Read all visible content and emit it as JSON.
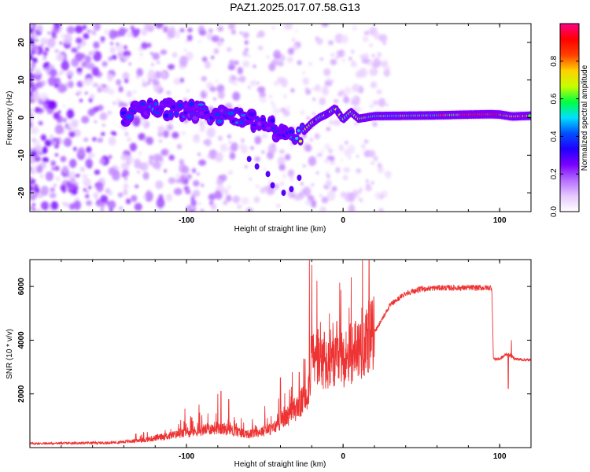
{
  "chart_data": [
    {
      "type": "heatmap",
      "title": "PAZ1.2025.017.07.58.G13",
      "xlabel": "Height of straight line (km)",
      "ylabel": "Frequency (Hz)",
      "xlim": [
        -200,
        120
      ],
      "ylim": [
        -25,
        25
      ],
      "x_ticks": [
        -100,
        0,
        100
      ],
      "y_ticks": [
        -20,
        -10,
        0,
        10,
        20
      ],
      "colorbar": {
        "label": "Normalized spectral amplitude",
        "range": [
          0,
          1
        ],
        "ticks": [
          "0.0",
          "0.2",
          "0.4",
          "0.6",
          "0.8"
        ],
        "tick_values": [
          0,
          0.2,
          0.4,
          0.6,
          0.8
        ],
        "colormap": [
          "#ffffff",
          "#e6c8ff",
          "#b46eff",
          "#7a00ff",
          "#2000ff",
          "#0050ff",
          "#00e0ff",
          "#00ff40",
          "#c8ff00",
          "#ffd000",
          "#ff4000",
          "#ff0000",
          "#ff0088"
        ]
      },
      "ridge": {
        "points": [
          [
            -135,
            3.2
          ],
          [
            -120,
            2.6
          ],
          [
            -110,
            2.2
          ],
          [
            -100,
            2.0
          ],
          [
            -90,
            1.6
          ],
          [
            -80,
            0.8
          ],
          [
            -70,
            0.6
          ],
          [
            -60,
            -0.4
          ],
          [
            -50,
            -1.5
          ],
          [
            -42,
            -3.5
          ],
          [
            -35,
            -5.0
          ],
          [
            -30,
            -6.2
          ],
          [
            -26,
            -4.0
          ],
          [
            -20,
            -1.5
          ],
          [
            -15,
            0.0
          ],
          [
            -10,
            1.0
          ],
          [
            -5,
            2.5
          ],
          [
            0,
            -0.5
          ],
          [
            5,
            1.5
          ],
          [
            10,
            -0.3
          ],
          [
            20,
            0.4
          ],
          [
            40,
            0.5
          ],
          [
            60,
            0.6
          ],
          [
            80,
            0.8
          ],
          [
            95,
            0.9
          ],
          [
            100,
            0.8
          ],
          [
            108,
            0.3
          ],
          [
            120,
            0.5
          ]
        ]
      }
    },
    {
      "type": "line",
      "xlabel": "Height of straight line (km)",
      "ylabel": "SNR (10 * v/v)",
      "xlim": [
        -200,
        120
      ],
      "ylim": [
        0,
        7000
      ],
      "x_ticks": [
        -100,
        0,
        100
      ],
      "y_ticks": [
        2000,
        4000,
        6000
      ],
      "series": [
        {
          "name": "SNR",
          "color": "#ee3333",
          "envelope": [
            [
              -200,
              150
            ],
            [
              -150,
              180
            ],
            [
              -130,
              260
            ],
            [
              -110,
              450
            ],
            [
              -95,
              600
            ],
            [
              -80,
              750
            ],
            [
              -60,
              500
            ],
            [
              -45,
              700
            ],
            [
              -35,
              1200
            ],
            [
              -26,
              1700
            ],
            [
              -22,
              2200
            ],
            [
              -20,
              3400
            ],
            [
              -15,
              3200
            ],
            [
              -10,
              3000
            ],
            [
              -5,
              3100
            ],
            [
              0,
              3300
            ],
            [
              10,
              3700
            ],
            [
              20,
              4300
            ],
            [
              30,
              5300
            ],
            [
              40,
              5750
            ],
            [
              50,
              5900
            ],
            [
              60,
              5950
            ],
            [
              75,
              5950
            ],
            [
              95,
              5950
            ],
            [
              96,
              3300
            ],
            [
              100,
              3300
            ],
            [
              105,
              3500
            ],
            [
              110,
              3300
            ],
            [
              120,
              3250
            ]
          ],
          "spikes": [
            [
              -101,
              1450
            ],
            [
              -92,
              1600
            ],
            [
              -80,
              2000
            ],
            [
              -78,
              2100
            ],
            [
              -73,
              1800
            ],
            [
              -50,
              1550
            ],
            [
              -40,
              2600
            ],
            [
              -28,
              2800
            ],
            [
              -25,
              3300
            ],
            [
              -21.5,
              7000
            ],
            [
              -20,
              6800
            ],
            [
              -18,
              3700
            ],
            [
              -16,
              4400
            ],
            [
              -12,
              4300
            ],
            [
              -8,
              4400
            ],
            [
              -4,
              4700
            ],
            [
              8,
              4700
            ],
            [
              12,
              5200
            ],
            [
              16,
              5000
            ],
            [
              105.5,
              2200
            ],
            [
              107.5,
              4000
            ]
          ]
        }
      ]
    }
  ]
}
